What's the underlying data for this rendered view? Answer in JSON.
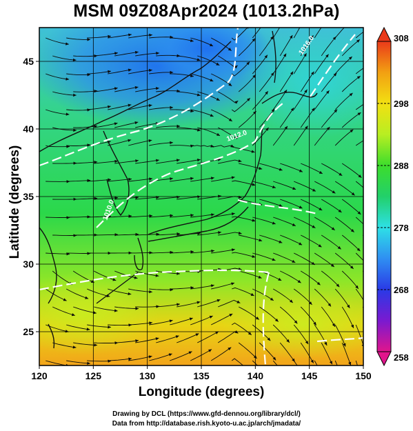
{
  "title": "MSM 09Z08Apr2024 (1013.2hPa)",
  "axes": {
    "x_label": "Longitude (degrees)",
    "y_label": "Latitude  (degrees)",
    "x_ticks": [
      "120",
      "125",
      "130",
      "135",
      "140",
      "145",
      "150"
    ],
    "y_ticks": [
      "25",
      "30",
      "35",
      "40",
      "45"
    ],
    "x_range": [
      120,
      150
    ],
    "y_range": [
      22.5,
      47.5
    ]
  },
  "colorbar": {
    "ticks": [
      "258",
      "268",
      "278",
      "288",
      "298",
      "308"
    ],
    "min": 258,
    "max": 308,
    "colors": [
      "#e0158c",
      "#7a1ad0",
      "#2a3ae6",
      "#2f8ff2",
      "#2ee0e6",
      "#22d06a",
      "#3ddd2c",
      "#b8ee22",
      "#f2e012",
      "#f2a012",
      "#ea3a1a"
    ]
  },
  "contour_labels": [
    "1016.0",
    "1012.0",
    "1010.0"
  ],
  "credits": {
    "line1": "Drawing by DCL (https://www.gfd-dennou.org/library/dcl/)",
    "line2": "Data from http://database.rish.kyoto-u.ac.jp/arch/jmadata/"
  }
}
